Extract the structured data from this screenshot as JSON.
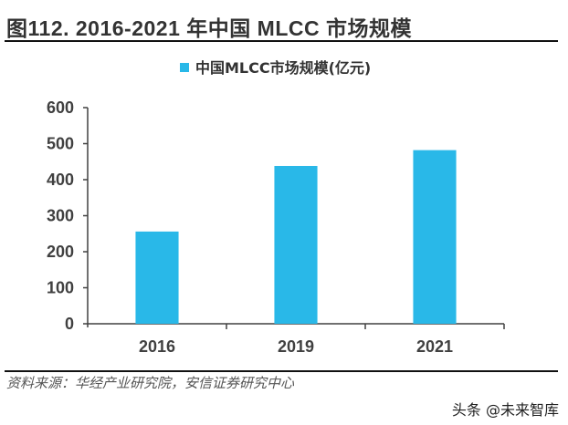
{
  "figure": {
    "title": "图112. 2016-2021 年中国 MLCC 市场规模",
    "source": "资料来源：华经产业研究院，安信证券研究中心",
    "watermark": "头条 @未来智库"
  },
  "colors": {
    "bar": "#29B8E8",
    "axis": "#404040",
    "text": "#333333"
  },
  "chart_data": {
    "type": "bar",
    "title": "",
    "categories": [
      "2016",
      "2019",
      "2021"
    ],
    "series": [
      {
        "name": "中国MLCC市场规模(亿元)",
        "values": [
          256,
          438,
          482
        ]
      }
    ],
    "xlabel": "",
    "ylabel": "",
    "ylim": [
      0,
      600
    ],
    "yticks": [
      0,
      100,
      200,
      300,
      400,
      500,
      600
    ],
    "grid": false,
    "legend": "top-center"
  }
}
